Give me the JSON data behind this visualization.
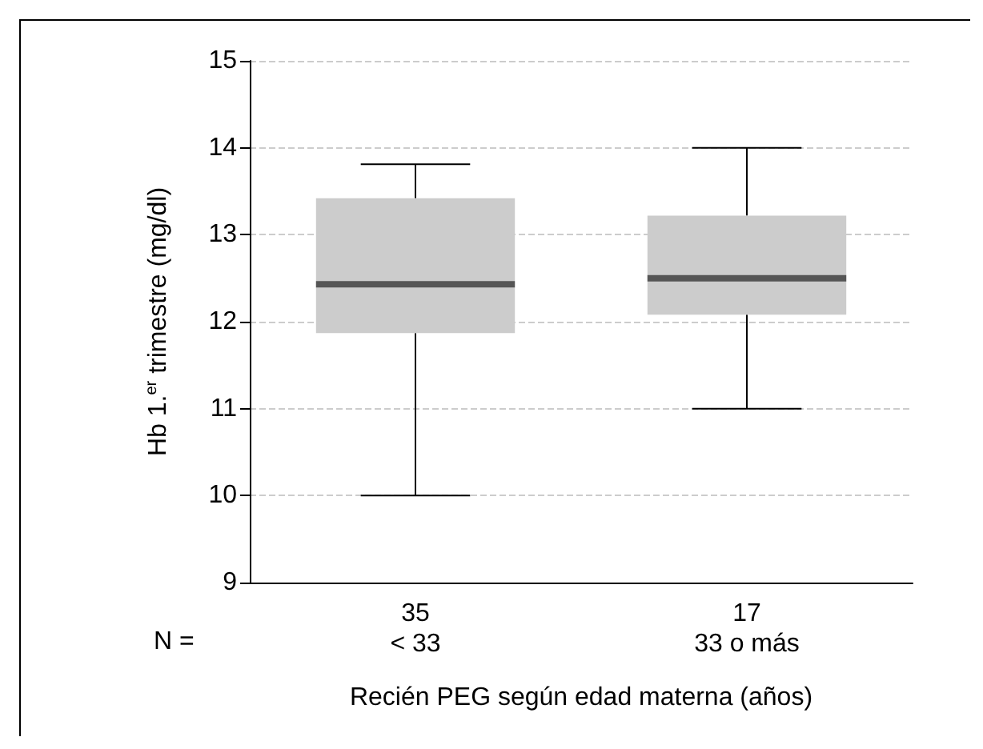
{
  "chart_data": {
    "type": "box",
    "xlabel": "Recién PEG según edad materna (años)",
    "ylabel": "Hb 1.$^{er}$ trimestre (mg/dl)",
    "categories": [
      "35\n< 33",
      "17\n33 o más"
    ],
    "series": [
      {
        "color": "#cccccc",
        "boxes": [
          {
            "low": 10.0,
            "q1": 11.87,
            "median": 12.43,
            "q3": 13.42,
            "high": 13.81
          },
          {
            "low": 11.0,
            "q1": 12.08,
            "median": 12.5,
            "q3": 13.22,
            "high": 14.0
          }
        ]
      }
    ],
    "ylim": [
      9,
      15
    ],
    "yticks": [
      9,
      10,
      11,
      12,
      13,
      14,
      15
    ],
    "grid": "y",
    "annotations": [
      "N ="
    ]
  }
}
